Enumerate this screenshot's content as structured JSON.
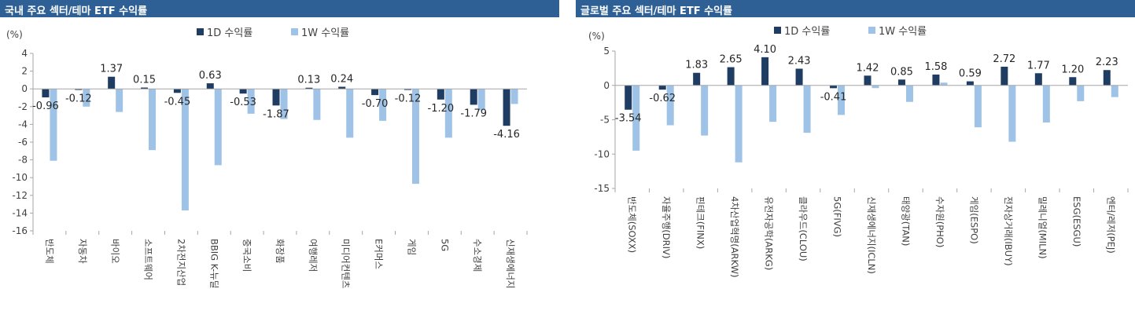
{
  "colors": {
    "title_bg": "#2e6095",
    "series_1d": "#1f3d63",
    "series_1w": "#9ec3e6",
    "axis": "#a6a6a6"
  },
  "chart_data": [
    {
      "type": "bar",
      "title": "국내 주요 섹터/테마 ETF 수익률",
      "unit_label": "(%)",
      "ylim": [
        -16,
        4
      ],
      "yticks": [
        4,
        2,
        0,
        -2,
        -4,
        -6,
        -8,
        -10,
        -12,
        -14,
        -16
      ],
      "legend": "top",
      "categories": [
        "반도체",
        "자동차",
        "바이오",
        "소프트웨어",
        "2차전지산업",
        "BBIG K-뉴딜",
        "중국소비",
        "화장품",
        "여행레저",
        "미디어컨텐츠",
        "E커머스",
        "게임",
        "5G",
        "수소경제",
        "신재생에너지"
      ],
      "series": [
        {
          "name": "1D 수익률",
          "values": [
            -0.96,
            -0.12,
            1.37,
            0.15,
            -0.45,
            0.63,
            -0.53,
            -1.87,
            0.13,
            0.24,
            -0.7,
            -0.12,
            -1.2,
            -1.79,
            -4.16
          ]
        },
        {
          "name": "1W 수익률",
          "values": [
            -8.1,
            -2.0,
            -2.6,
            -6.9,
            -13.7,
            -8.6,
            -2.8,
            -3.4,
            -3.5,
            -5.5,
            -3.6,
            -10.7,
            -5.5,
            -2.4,
            -1.7
          ]
        }
      ],
      "data_labels": [
        "-0.96",
        "-0.12",
        "1.37",
        "0.15",
        "-0.45",
        "0.63",
        "-0.53",
        "-1.87",
        "0.13",
        "0.24",
        "-0.70",
        "-0.12",
        "-1.20",
        "-1.79",
        "-4.16"
      ]
    },
    {
      "type": "bar",
      "title": "글로벌 주요 섹터/테마 ETF 수익률",
      "unit_label": "(%)",
      "ylim": [
        -15,
        5
      ],
      "yticks": [
        5,
        0,
        -5,
        -10,
        -15
      ],
      "legend": "top",
      "categories": [
        "반도체(SOXX)",
        "자율주행(DRIV)",
        "핀테크(FINX)",
        "4차산업혁명(ARKW)",
        "유전자공학(ARKG)",
        "클라우드(CLOU)",
        "5G(FIVG)",
        "신재생에너지(ICLN)",
        "태양광(TAN)",
        "수자원(PHO)",
        "게임(ESPO)",
        "전자상거래(IBUY)",
        "밀레니얼(MILN)",
        "ESG(ESGU)",
        "엔터/레저(PEJ)"
      ],
      "series": [
        {
          "name": "1D 수익률",
          "values": [
            -3.54,
            -0.62,
            1.83,
            2.65,
            4.1,
            2.43,
            -0.41,
            1.42,
            0.85,
            1.58,
            0.59,
            2.72,
            1.77,
            1.2,
            2.23
          ]
        },
        {
          "name": "1W 수익률",
          "values": [
            -9.5,
            -5.8,
            -7.3,
            -11.2,
            -5.3,
            -6.9,
            -4.3,
            -0.4,
            -2.4,
            0.4,
            -6.1,
            -8.2,
            -5.4,
            -2.3,
            -1.7
          ]
        }
      ],
      "data_labels": [
        "-3.54",
        "-0.62",
        "1.83",
        "2.65",
        "4.10",
        "2.43",
        "-0.41",
        "1.42",
        "0.85",
        "1.58",
        "0.59",
        "2.72",
        "1.77",
        "1.20",
        "2.23"
      ]
    }
  ]
}
